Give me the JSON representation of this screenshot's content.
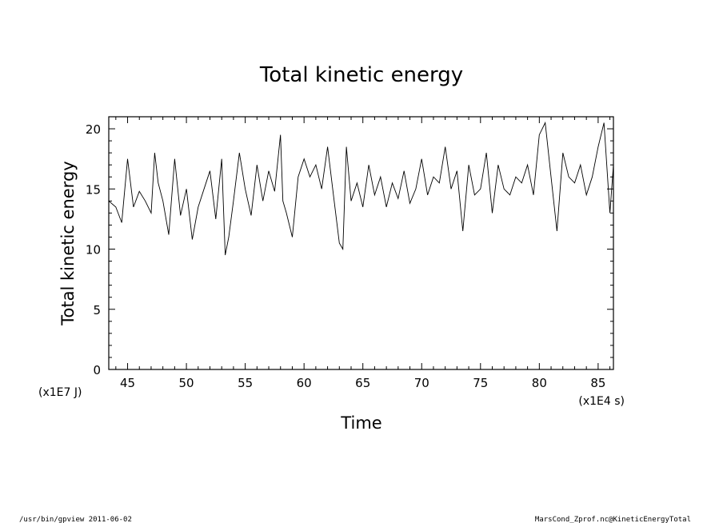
{
  "chart_data": {
    "type": "line",
    "title": "Total kinetic energy",
    "xlabel": "Time",
    "ylabel": "Total kinetic energy",
    "x_unit": "(x1E4 s)",
    "y_unit": "(x1E7 J)",
    "xlim": [
      43.4,
      86.3
    ],
    "ylim": [
      0,
      21
    ],
    "x_ticks": [
      45,
      50,
      55,
      60,
      65,
      70,
      75,
      80,
      85
    ],
    "y_ticks": [
      0,
      5,
      10,
      15,
      20
    ],
    "grid": false,
    "legend": "none",
    "line_color": "#000000",
    "series": [
      {
        "x": [
          43.4,
          44.0,
          44.5,
          45.0,
          45.5,
          46.0,
          46.5,
          47.0,
          47.3,
          47.6,
          48.0,
          48.5,
          49.0,
          49.5,
          50.0,
          50.5,
          51.0,
          51.5,
          52.0,
          52.5,
          53.0,
          53.3,
          53.6,
          54.0,
          54.5,
          55.0,
          55.5,
          56.0,
          56.5,
          57.0,
          57.5,
          58.0,
          58.2,
          58.5,
          59.0,
          59.5,
          60.0,
          60.5,
          61.0,
          61.5,
          62.0,
          62.5,
          63.0,
          63.3,
          63.6,
          64.0,
          64.5,
          65.0,
          65.5,
          66.0,
          66.5,
          67.0,
          67.5,
          68.0,
          68.5,
          69.0,
          69.5,
          70.0,
          70.5,
          71.0,
          71.5,
          72.0,
          72.5,
          73.0,
          73.5,
          74.0,
          74.5,
          75.0,
          75.5,
          76.0,
          76.5,
          77.0,
          77.5,
          78.0,
          78.5,
          79.0,
          79.5,
          80.0,
          80.5,
          81.0,
          81.5,
          82.0,
          82.5,
          83.0,
          83.5,
          84.0,
          84.5,
          85.0,
          85.5,
          86.0,
          86.3
        ],
        "y": [
          14.0,
          13.5,
          12.2,
          17.5,
          13.5,
          14.8,
          14.0,
          13.0,
          18.0,
          15.5,
          14.0,
          11.2,
          17.5,
          12.8,
          15.0,
          10.8,
          13.5,
          15.0,
          16.5,
          12.5,
          17.5,
          9.5,
          11.0,
          14.0,
          18.0,
          15.0,
          12.8,
          17.0,
          14.0,
          16.5,
          14.8,
          19.5,
          14.0,
          13.0,
          11.0,
          16.0,
          17.5,
          16.0,
          17.0,
          15.0,
          18.5,
          14.5,
          10.5,
          10.0,
          18.5,
          14.0,
          15.5,
          13.5,
          17.0,
          14.5,
          16.0,
          13.5,
          15.5,
          14.2,
          16.5,
          13.8,
          15.0,
          17.5,
          14.5,
          16.0,
          15.5,
          18.5,
          15.0,
          16.5,
          11.5,
          17.0,
          14.5,
          15.0,
          18.0,
          13.0,
          17.0,
          15.0,
          14.5,
          16.0,
          15.5,
          17.0,
          14.5,
          19.5,
          20.5,
          16.0,
          11.5,
          18.0,
          16.0,
          15.5,
          17.0,
          14.5,
          16.0,
          18.5,
          20.5,
          13.0,
          17.0
        ]
      }
    ]
  },
  "footer": {
    "left": "/usr/bin/gpview   2011-06-02",
    "right": "MarsCond_Zprof.nc@KineticEnergyTotal"
  }
}
